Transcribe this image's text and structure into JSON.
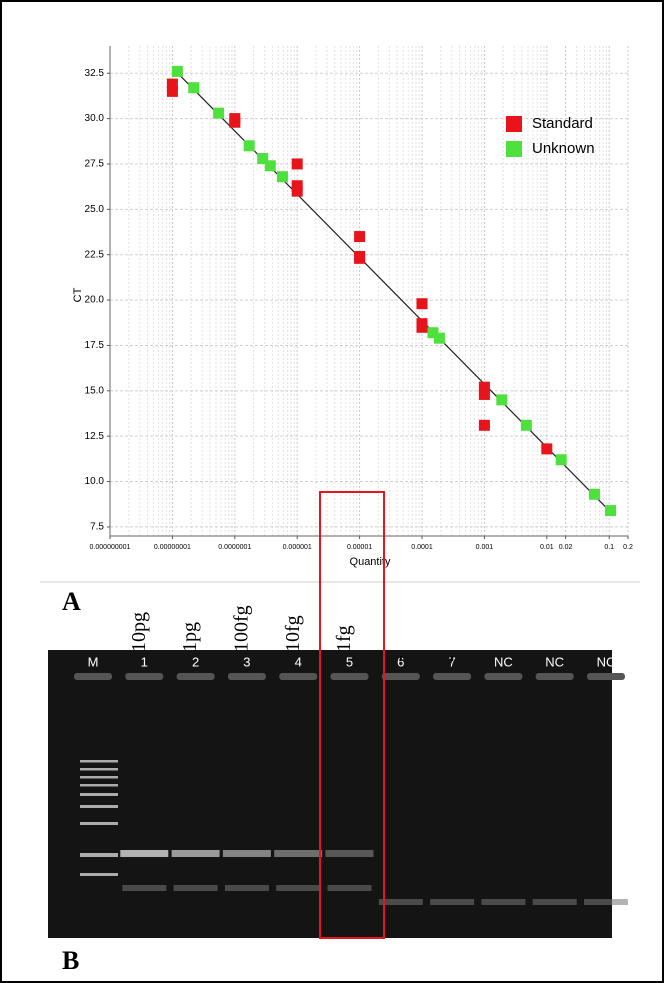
{
  "chart_data": {
    "type": "scatter",
    "x_label": "Quantity",
    "y_label": "CT",
    "log_x": true,
    "grid": true,
    "legend": "upper right",
    "xlim": [
      1e-09,
      0.2
    ],
    "ylim": [
      7,
      34
    ],
    "xticks": [
      {
        "value": 1e-09,
        "label": "0.000000001"
      },
      {
        "value": 1e-08,
        "label": "0.00000001"
      },
      {
        "value": 1e-07,
        "label": "0.0000001"
      },
      1e-06,
      1e-05,
      0.0001,
      0.001,
      0.01,
      0.02,
      0.1,
      0.2
    ],
    "yticks": [
      7.5,
      {
        "value": 10,
        "label": "10.0"
      },
      12.5,
      {
        "value": 15,
        "label": "15.0"
      },
      17.5,
      {
        "value": 20,
        "label": "20.0"
      },
      22.5,
      {
        "value": 25,
        "label": "25.0"
      },
      27.5,
      {
        "value": 30,
        "label": "30.0"
      },
      32.5
    ],
    "series": [
      {
        "name": "Standard",
        "color": "#e8141b",
        "x": [
          1e-08,
          1e-08,
          1e-07,
          1e-07,
          1e-06,
          1e-06,
          1e-06,
          1e-05,
          1e-05,
          1e-05,
          0.0001,
          0.0001,
          0.0001,
          0.001,
          0.001,
          0.001,
          0.01
        ],
        "values": [
          31.9,
          31.5,
          30.0,
          29.8,
          27.5,
          26.3,
          26.0,
          23.5,
          22.4,
          22.3,
          19.8,
          18.7,
          18.5,
          15.2,
          14.8,
          13.1,
          11.8
        ]
      },
      {
        "name": "Unknown",
        "color": "#4ee03c",
        "x": [
          1.2e-08,
          2.2e-08,
          5.5e-08,
          1.7e-07,
          2.8e-07,
          3.7e-07,
          5.8e-07,
          0.00015,
          0.00019,
          0.0019,
          0.0047,
          0.017,
          0.058,
          0.105
        ],
        "values": [
          32.6,
          31.7,
          30.3,
          28.5,
          27.8,
          27.4,
          26.8,
          18.2,
          17.9,
          14.5,
          13.1,
          11.2,
          9.3,
          8.4
        ]
      }
    ],
    "fit": {
      "x": [
        1e-08,
        0.1
      ],
      "values": [
        32.8,
        8.4
      ]
    }
  },
  "panel_labels": [
    "A",
    "B"
  ],
  "gel": {
    "amounts": [
      "10pg",
      "1pg",
      "100fg",
      "10fg",
      "1fg"
    ],
    "lanes": [
      "M",
      "1",
      "2",
      "3",
      "4",
      "5",
      "6",
      "7",
      "NC",
      "NC",
      "NC"
    ]
  }
}
